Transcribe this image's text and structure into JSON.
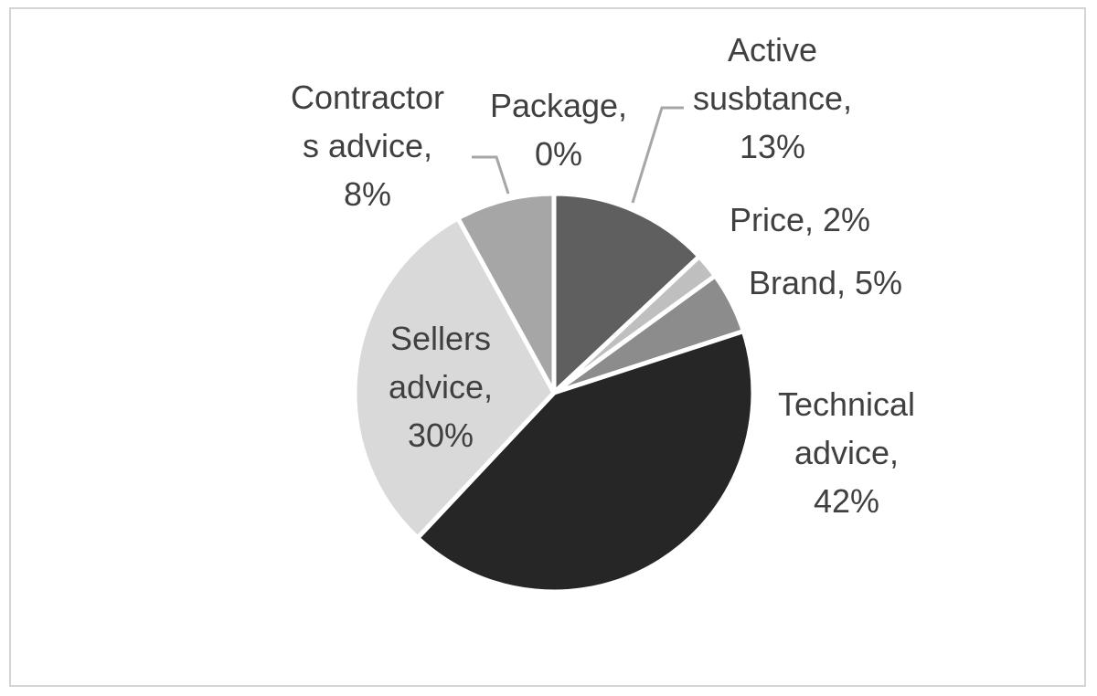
{
  "chart_data": {
    "type": "pie",
    "slices": [
      {
        "label": "Package",
        "percent": "0%",
        "value": 0,
        "color": "#3f3f3f",
        "text_lines": [
          "Package,",
          "0%"
        ]
      },
      {
        "label": "Active susbtance",
        "percent": "13%",
        "value": 13,
        "color": "#5f5f5f",
        "text_lines": [
          "Active",
          "susbtance,",
          "13%"
        ]
      },
      {
        "label": "Price",
        "percent": "2%",
        "value": 2,
        "color": "#bfbfbf",
        "text_lines": [
          "Price, 2%"
        ]
      },
      {
        "label": "Brand",
        "percent": "5%",
        "value": 5,
        "color": "#8c8c8c",
        "text_lines": [
          "Brand, 5%"
        ]
      },
      {
        "label": "Technical advice",
        "percent": "42%",
        "value": 42,
        "color": "#262626",
        "text_lines": [
          "Technical",
          "advice,",
          "42%"
        ]
      },
      {
        "label": "Sellers advice",
        "percent": "30%",
        "value": 30,
        "color": "#d9d9d9",
        "text_lines": [
          "Sellers",
          "advice,",
          "30%"
        ]
      },
      {
        "label": "Contractors advice",
        "percent": "8%",
        "value": 8,
        "color": "#a6a6a6",
        "text_lines": [
          "Contractor",
          "s advice,",
          "8%"
        ]
      }
    ],
    "legend": "none",
    "start_angle": "12 o'clock",
    "direction": "clockwise"
  }
}
